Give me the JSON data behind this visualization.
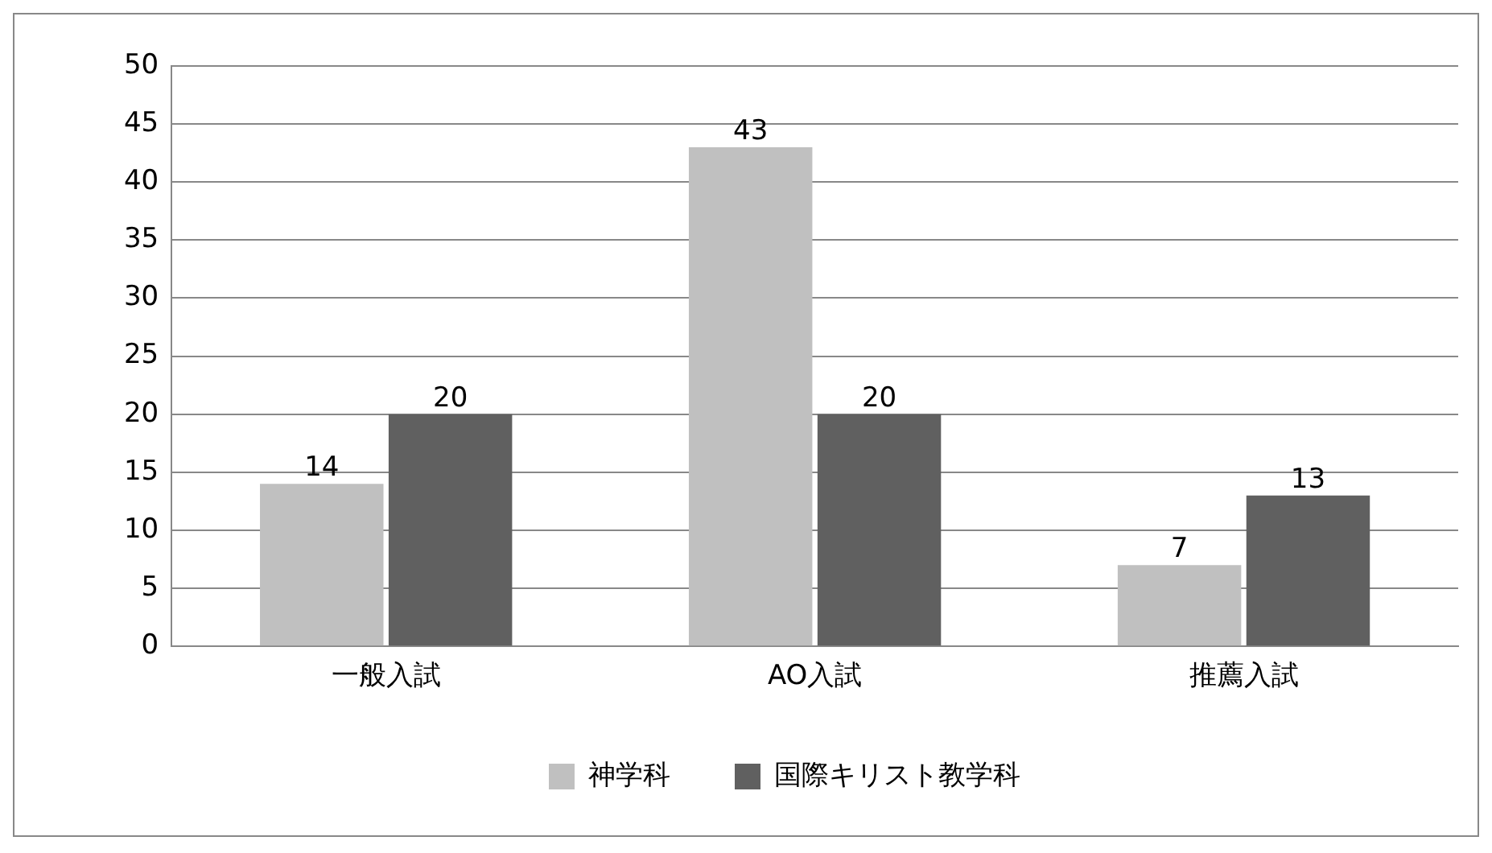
{
  "chart_data": {
    "type": "bar",
    "categories": [
      "一般入試",
      "AO入試",
      "推薦入試"
    ],
    "series": [
      {
        "name": "神学科",
        "color": "#c0c0c0",
        "values": [
          14,
          43,
          7
        ]
      },
      {
        "name": "国際キリスト教学科",
        "color": "#606060",
        "values": [
          20,
          20,
          13
        ]
      }
    ],
    "ylim": [
      0,
      50
    ],
    "yticks": [
      0,
      5,
      10,
      15,
      20,
      25,
      30,
      35,
      40,
      45,
      50
    ],
    "grid": "y",
    "legend": "bottom",
    "data_labels": true
  }
}
